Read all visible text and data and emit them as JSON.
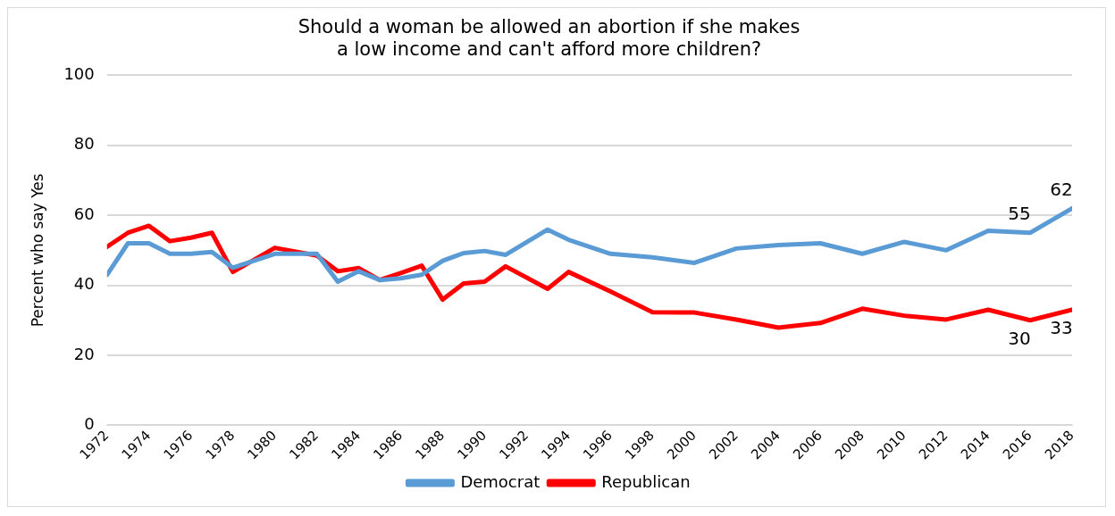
{
  "chart_data": {
    "type": "line",
    "title": "Should a woman be allowed an abortion if she makes\na low income and can't afford more children?",
    "ylabel": "Percent who say Yes",
    "x": [
      1972,
      1973,
      1974,
      1975,
      1976,
      1977,
      1978,
      1980,
      1982,
      1983,
      1984,
      1985,
      1986,
      1987,
      1988,
      1989,
      1990,
      1991,
      1993,
      1994,
      1996,
      1998,
      2000,
      2002,
      2004,
      2006,
      2008,
      2010,
      2012,
      2014,
      2016,
      2018
    ],
    "series": [
      {
        "name": "Democrat",
        "color": "#5b9bd5",
        "values": [
          43,
          52,
          52,
          49,
          49,
          49.5,
          45,
          49,
          49,
          41,
          44,
          41.5,
          42,
          43,
          47,
          49.2,
          49.8,
          48.7,
          55.9,
          53,
          49,
          48,
          46.4,
          50.5,
          51.5,
          52,
          49,
          52.4,
          50,
          55.6,
          55,
          62
        ],
        "value_labels": [
          null,
          null,
          null,
          null,
          null,
          null,
          null,
          null,
          null,
          null,
          null,
          null,
          null,
          null,
          null,
          null,
          null,
          null,
          null,
          null,
          null,
          null,
          null,
          null,
          null,
          null,
          null,
          null,
          null,
          null,
          "55",
          "62"
        ]
      },
      {
        "name": "Republican",
        "color": "#ff0000",
        "values": [
          51,
          55,
          57,
          52.6,
          53.6,
          55,
          43.8,
          50.7,
          48.5,
          44,
          44.9,
          41.5,
          43.5,
          45.6,
          35.9,
          40.5,
          41,
          45.4,
          39,
          43.8,
          38.2,
          32.3,
          32.2,
          30.2,
          27.9,
          29.2,
          33.3,
          31.3,
          30.2,
          33,
          30,
          33
        ],
        "value_labels": [
          null,
          null,
          null,
          null,
          null,
          null,
          null,
          null,
          null,
          null,
          null,
          null,
          null,
          null,
          null,
          null,
          null,
          null,
          null,
          null,
          null,
          null,
          null,
          null,
          null,
          null,
          null,
          null,
          null,
          null,
          "30",
          "33"
        ]
      }
    ],
    "xlim": [
      1972,
      2018
    ],
    "xticks": [
      1972,
      1974,
      1976,
      1978,
      1980,
      1982,
      1984,
      1986,
      1988,
      1990,
      1992,
      1994,
      1996,
      1998,
      2000,
      2002,
      2004,
      2006,
      2008,
      2010,
      2012,
      2014,
      2016,
      2018
    ],
    "ylim": [
      0,
      100
    ],
    "yticks": [
      0,
      20,
      40,
      60,
      80,
      100
    ],
    "grid": "y",
    "legend": "bottom",
    "marker": "none",
    "line_style": "solid"
  }
}
